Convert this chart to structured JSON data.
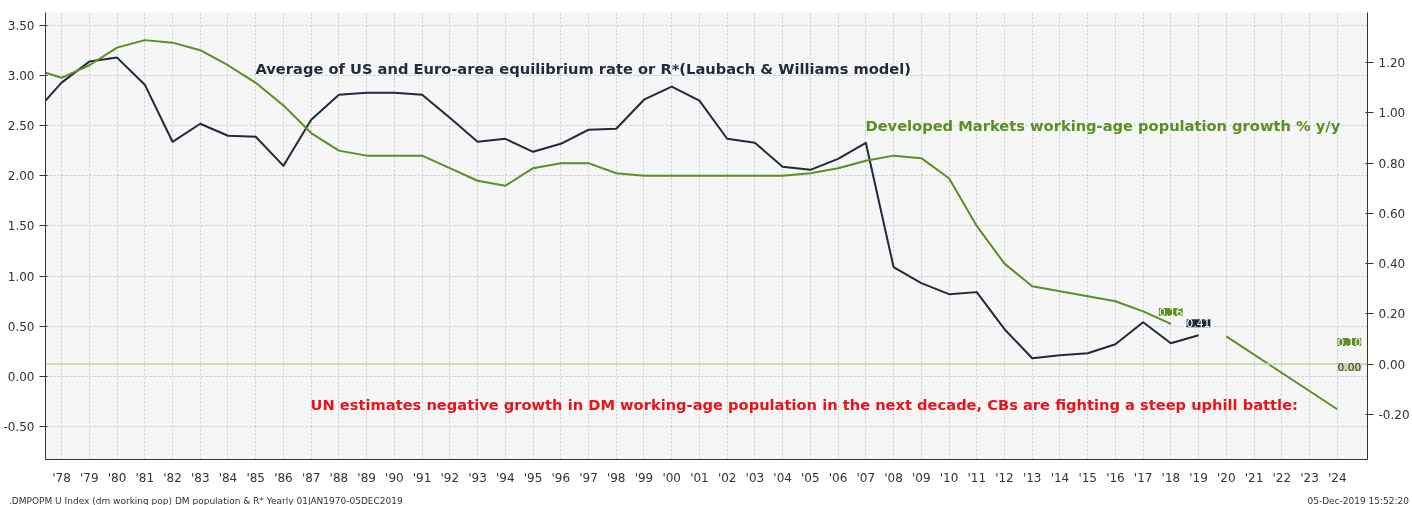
{
  "chart_data": {
    "type": "line",
    "grid": true,
    "xlim": [
      1977.42,
      2025.09
    ],
    "ylim": [
      -0.83,
      3.63
    ],
    "y2lim": [
      -0.38,
      1.4
    ],
    "xticks": [
      {
        "value": 1978,
        "label": "'78"
      },
      {
        "value": 1979,
        "label": "'79"
      },
      {
        "value": 1980,
        "label": "'80"
      },
      {
        "value": 1981,
        "label": "'81"
      },
      {
        "value": 1982,
        "label": "'82"
      },
      {
        "value": 1983,
        "label": "'83"
      },
      {
        "value": 1984,
        "label": "'84"
      },
      {
        "value": 1985,
        "label": "'85"
      },
      {
        "value": 1986,
        "label": "'86"
      },
      {
        "value": 1987,
        "label": "'87"
      },
      {
        "value": 1988,
        "label": "'88"
      },
      {
        "value": 1989,
        "label": "'89"
      },
      {
        "value": 1990,
        "label": "'90"
      },
      {
        "value": 1991,
        "label": "'91"
      },
      {
        "value": 1992,
        "label": "'92"
      },
      {
        "value": 1993,
        "label": "'93"
      },
      {
        "value": 1994,
        "label": "'94"
      },
      {
        "value": 1995,
        "label": "'95"
      },
      {
        "value": 1996,
        "label": "'96"
      },
      {
        "value": 1997,
        "label": "'97"
      },
      {
        "value": 1998,
        "label": "'98"
      },
      {
        "value": 1999,
        "label": "'99"
      },
      {
        "value": 2000,
        "label": "'00"
      },
      {
        "value": 2001,
        "label": "'01"
      },
      {
        "value": 2002,
        "label": "'02"
      },
      {
        "value": 2003,
        "label": "'03"
      },
      {
        "value": 2004,
        "label": "'04"
      },
      {
        "value": 2005,
        "label": "'05"
      },
      {
        "value": 2006,
        "label": "'06"
      },
      {
        "value": 2007,
        "label": "'07"
      },
      {
        "value": 2008,
        "label": "'08"
      },
      {
        "value": 2009,
        "label": "'09"
      },
      {
        "value": 2010,
        "label": "'10"
      },
      {
        "value": 2011,
        "label": "'11"
      },
      {
        "value": 2012,
        "label": "'12"
      },
      {
        "value": 2013,
        "label": "'13"
      },
      {
        "value": 2014,
        "label": "'14"
      },
      {
        "value": 2015,
        "label": "'15"
      },
      {
        "value": 2016,
        "label": "'16"
      },
      {
        "value": 2017,
        "label": "'17"
      },
      {
        "value": 2018,
        "label": "'18"
      },
      {
        "value": 2019,
        "label": "'19"
      },
      {
        "value": 2020,
        "label": "'20"
      },
      {
        "value": 2021,
        "label": "'21"
      },
      {
        "value": 2022,
        "label": "'22"
      },
      {
        "value": 2023,
        "label": "'23"
      },
      {
        "value": 2024,
        "label": "'24"
      }
    ],
    "yticks": [
      {
        "value": -0.5,
        "label": "-0.50"
      },
      {
        "value": 0,
        "label": "0.00"
      },
      {
        "value": 0.5,
        "label": "0.50"
      },
      {
        "value": 1,
        "label": "1.00"
      },
      {
        "value": 1.5,
        "label": "1.50"
      },
      {
        "value": 2,
        "label": "2.00"
      },
      {
        "value": 2.5,
        "label": "2.50"
      },
      {
        "value": 3,
        "label": "3.00"
      },
      {
        "value": 3.5,
        "label": "3.50"
      }
    ],
    "y2ticks": [
      {
        "value": -0.2,
        "label": "-0.20"
      },
      {
        "value": 0,
        "label": "0.00"
      },
      {
        "value": 0.2,
        "label": "0.20"
      },
      {
        "value": 0.4,
        "label": "0.40"
      },
      {
        "value": 0.6,
        "label": "0.60"
      },
      {
        "value": 0.8,
        "label": "0.80"
      },
      {
        "value": 1,
        "label": "1.00"
      },
      {
        "value": 1.2,
        "label": "1.20"
      }
    ],
    "series": [
      {
        "name": "Average of US and Euro-area equilibrium rate or R*(Laubach & Williams model)",
        "color": "#1f2a3c",
        "x": [
          1977.42,
          1978,
          1979,
          1980,
          1981,
          1982,
          1983,
          1984,
          1985,
          1986,
          1987,
          1988,
          1989,
          1990,
          1991,
          1992,
          1993,
          1994,
          1995,
          1996,
          1997,
          1998,
          1999,
          2000,
          2001,
          2002,
          2003,
          2004,
          2005,
          2006,
          2007,
          2008,
          2009,
          2010,
          2011,
          2012,
          2013,
          2014,
          2015,
          2016,
          2017,
          2018,
          2019
        ],
        "values": [
          2.75,
          2.93,
          3.14,
          3.18,
          2.91,
          2.34,
          2.52,
          2.4,
          2.39,
          2.1,
          2.56,
          2.81,
          2.83,
          2.83,
          2.81,
          2.58,
          2.34,
          2.37,
          2.24,
          2.32,
          2.46,
          2.47,
          2.76,
          2.89,
          2.75,
          2.37,
          2.33,
          2.09,
          2.06,
          2.17,
          2.33,
          1.09,
          0.93,
          0.82,
          0.84,
          0.47,
          0.18,
          0.21,
          0.23,
          0.32,
          0.54,
          0.33,
          0.41
        ],
        "value_labels": [
          null,
          null,
          null,
          null,
          null,
          null,
          null,
          null,
          null,
          null,
          null,
          null,
          null,
          null,
          null,
          null,
          null,
          null,
          null,
          null,
          null,
          null,
          null,
          null,
          null,
          null,
          null,
          null,
          null,
          null,
          null,
          null,
          null,
          null,
          null,
          null,
          null,
          null,
          null,
          null,
          null,
          null,
          "0.41"
        ]
      },
      {
        "name": "Developed Markets working-age population growth % y/y",
        "color": "#5b8f22",
        "axis": "y2",
        "x": [
          1977.42,
          1978,
          1979,
          1980,
          1981,
          1982,
          1983,
          1984,
          1985,
          1986,
          1987,
          1988,
          1989,
          1990,
          1991,
          1992,
          1993,
          1994,
          1995,
          1996,
          1997,
          1998,
          1999,
          2000,
          2001,
          2002,
          2003,
          2004,
          2005,
          2006,
          2007,
          2008,
          2009,
          2010,
          2011,
          2012,
          2013,
          2014,
          2015,
          2016,
          2017,
          2018
        ],
        "values": [
          1.16,
          1.14,
          1.19,
          1.26,
          1.29,
          1.28,
          1.25,
          1.19,
          1.12,
          1.03,
          0.92,
          0.85,
          0.83,
          0.83,
          0.83,
          0.78,
          0.73,
          0.71,
          0.78,
          0.8,
          0.8,
          0.76,
          0.75,
          0.75,
          0.75,
          0.75,
          0.75,
          0.75,
          0.76,
          0.78,
          0.81,
          0.83,
          0.82,
          0.74,
          0.55,
          0.4,
          0.31,
          0.29,
          0.27,
          0.25,
          0.21,
          0.16
        ],
        "value_labels": [
          null,
          null,
          null,
          null,
          null,
          null,
          null,
          null,
          null,
          null,
          null,
          null,
          null,
          null,
          null,
          null,
          null,
          null,
          null,
          null,
          null,
          null,
          null,
          null,
          null,
          null,
          null,
          null,
          null,
          null,
          null,
          null,
          null,
          null,
          null,
          null,
          null,
          null,
          null,
          null,
          null,
          "0.16"
        ]
      },
      {
        "color": "#5b8f22",
        "axis": "y2",
        "x": [
          2020,
          2024
        ],
        "values": [
          0.11,
          -0.18
        ]
      }
    ],
    "ref_lines": [
      {
        "axis": "y2",
        "value": 0,
        "label": "0.00",
        "color": "#c8d6a0"
      }
    ],
    "annotations": [
      "UN estimates negative growth in DM working-age population in the next decade, CBs are fighting a steep uphill battle:",
      {
        "text": "0.10",
        "x": 2025.09,
        "y": 0.1
      },
      ".DMPOPM U Index (dm working pop) DM population & R* Yearly 01JAN1970-05DEC2019",
      "05-Dec-2019 15:52:20"
    ]
  }
}
